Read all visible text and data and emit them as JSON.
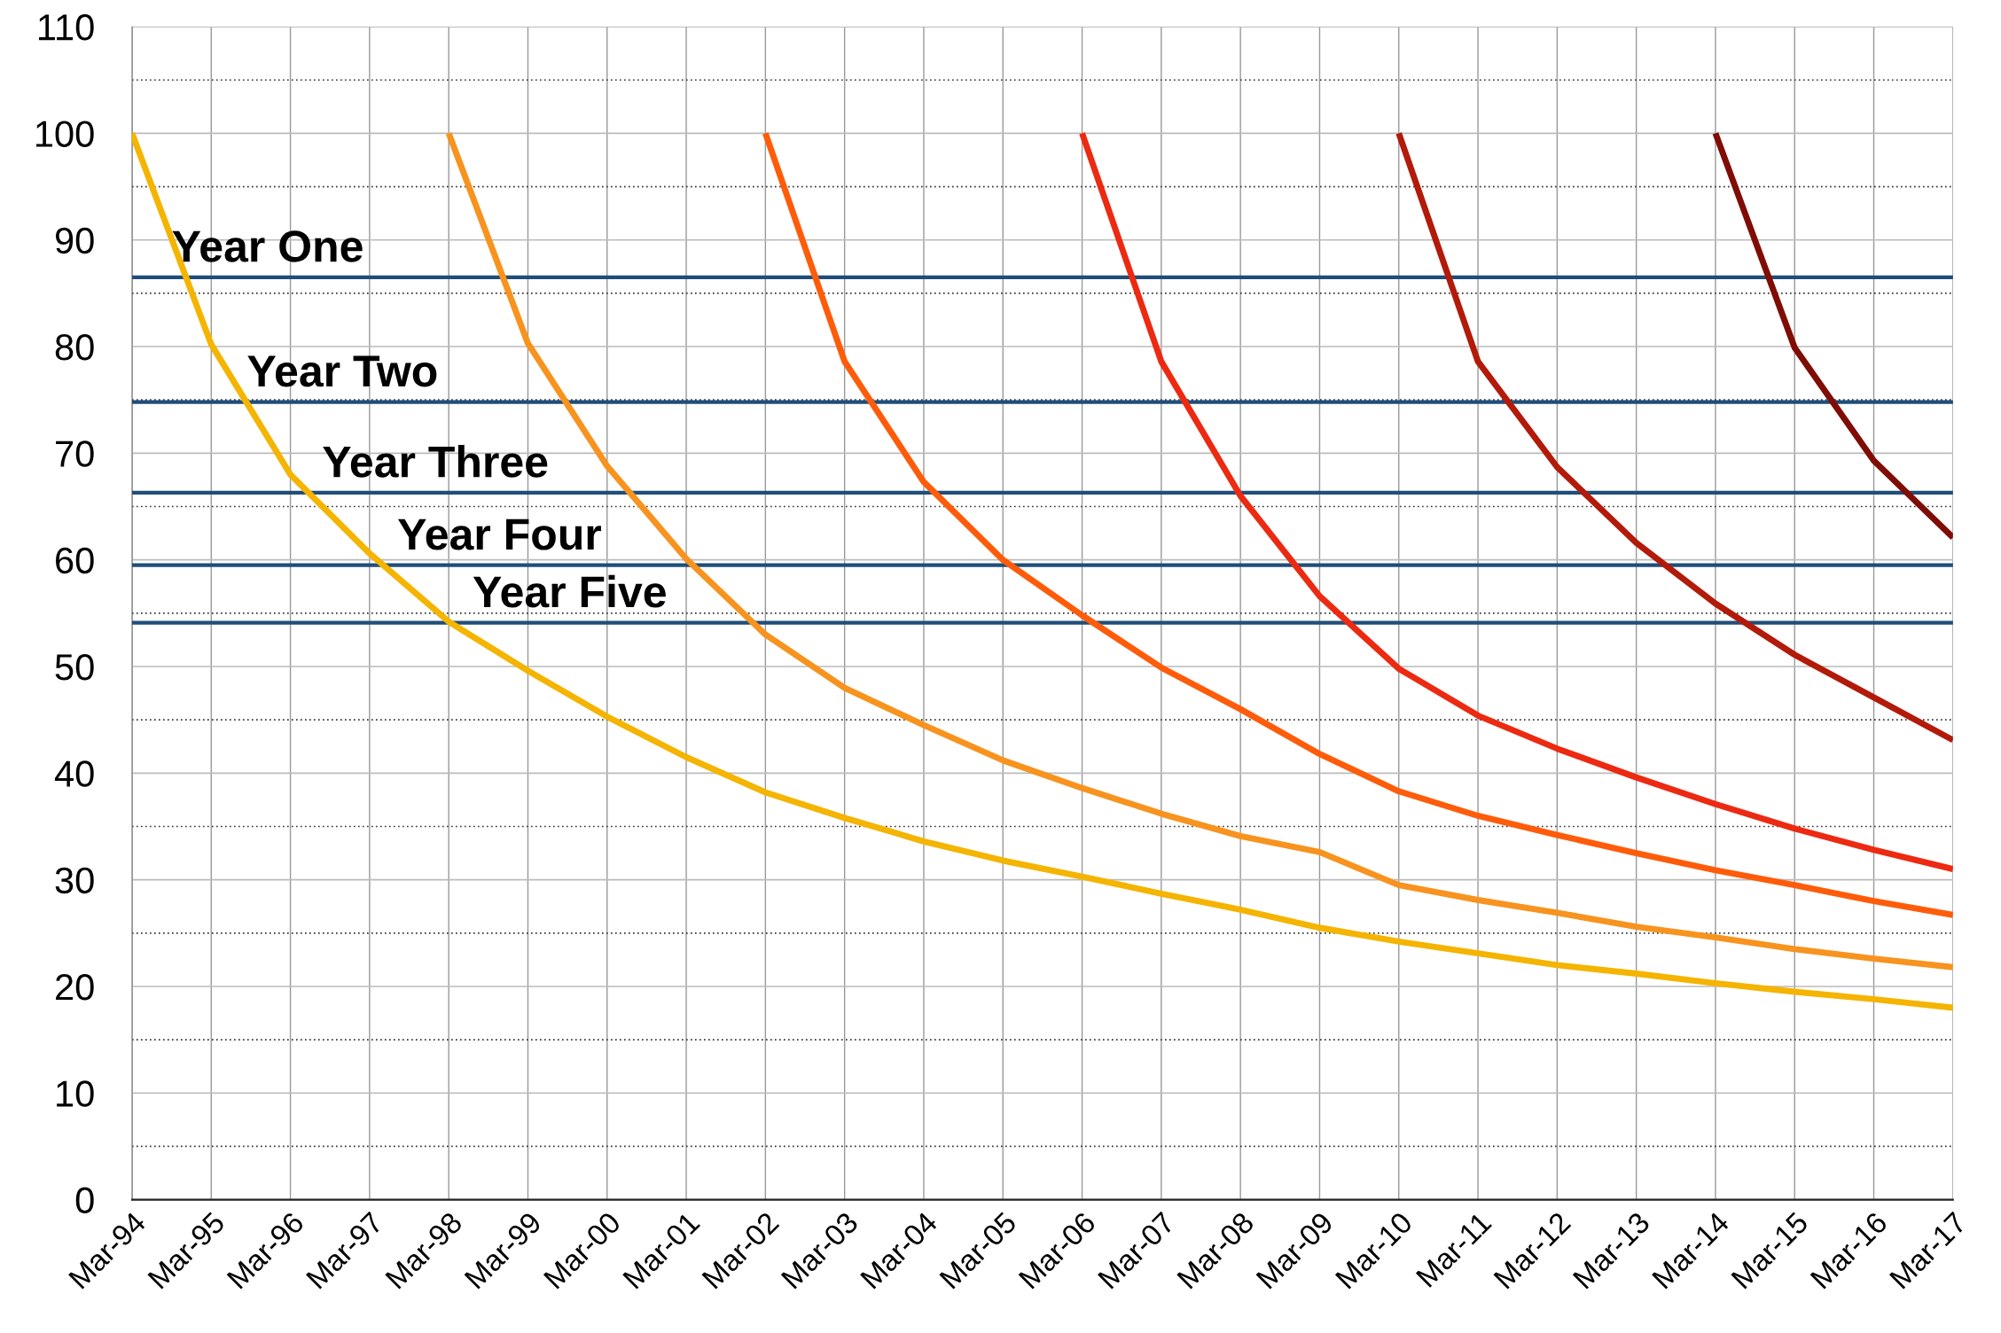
{
  "chart_data": {
    "type": "line",
    "categories": [
      "Mar-94",
      "Mar-95",
      "Mar-96",
      "Mar-97",
      "Mar-98",
      "Mar-99",
      "Mar-00",
      "Mar-01",
      "Mar-02",
      "Mar-03",
      "Mar-04",
      "Mar-05",
      "Mar-06",
      "Mar-07",
      "Mar-08",
      "Mar-09",
      "Mar-10",
      "Mar-11",
      "Mar-12",
      "Mar-13",
      "Mar-14",
      "Mar-15",
      "Mar-16",
      "Mar-17"
    ],
    "series": [
      {
        "color": "#f4b400",
        "values": [
          100,
          80.2,
          68,
          60.6,
          54.2,
          49.6,
          45.3,
          41.5,
          38.2,
          35.8,
          33.6,
          31.8,
          30.3,
          28.7,
          27.2,
          25.5,
          24.2,
          23.1,
          22.0,
          21.2,
          20.3,
          19.5,
          18.8,
          18.0
        ]
      },
      {
        "color": "#f7931e",
        "values": [
          null,
          null,
          null,
          null,
          100,
          80.3,
          68.8,
          60.1,
          53,
          48,
          44.5,
          41.2,
          38.6,
          36.2,
          34.1,
          32.6,
          29.5,
          28.1,
          26.9,
          25.6,
          24.6,
          23.5,
          22.6,
          21.8
        ]
      },
      {
        "color": "#fe5c0a",
        "values": [
          null,
          null,
          null,
          null,
          null,
          null,
          null,
          null,
          100,
          78.6,
          67.3,
          60,
          54.8,
          49.9,
          46,
          41.8,
          38.3,
          36,
          34.2,
          32.5,
          30.9,
          29.5,
          28,
          26.7
        ]
      },
      {
        "color": "#ec2a12",
        "values": [
          null,
          null,
          null,
          null,
          null,
          null,
          null,
          null,
          null,
          null,
          null,
          null,
          100,
          78.6,
          66,
          56.6,
          49.8,
          45.4,
          42.3,
          39.6,
          37.1,
          34.8,
          32.8,
          31.0
        ]
      },
      {
        "color": "#b21a0a",
        "values": [
          null,
          null,
          null,
          null,
          null,
          null,
          null,
          null,
          null,
          null,
          null,
          null,
          null,
          null,
          null,
          null,
          100,
          78.6,
          68.7,
          61.6,
          55.9,
          51.1,
          47.1,
          43.1
        ]
      },
      {
        "color": "#7f0d06",
        "values": [
          null,
          null,
          null,
          null,
          null,
          null,
          null,
          null,
          null,
          null,
          null,
          null,
          null,
          null,
          null,
          null,
          null,
          null,
          null,
          null,
          100,
          79.9,
          69.3,
          62.1
        ]
      }
    ],
    "ylim": [
      0,
      110
    ],
    "yticks": [
      0,
      10,
      20,
      30,
      40,
      50,
      60,
      70,
      80,
      90,
      100,
      110
    ],
    "grid": true,
    "marker": "none",
    "line_style": "solid",
    "ref_lines": [
      {
        "axis": "y",
        "value": 86.5,
        "label": "Year One",
        "color": "#1f4e79"
      },
      {
        "axis": "y",
        "value": 74.8,
        "label": "Year Two",
        "color": "#1f4e79"
      },
      {
        "axis": "y",
        "value": 66.3,
        "label": "Year Three",
        "color": "#1f4e79"
      },
      {
        "axis": "y",
        "value": 59.5,
        "label": "Year Four",
        "color": "#1f4e79"
      },
      {
        "axis": "y",
        "value": 54.1,
        "label": "Year Five",
        "color": "#1f4e79"
      }
    ]
  }
}
